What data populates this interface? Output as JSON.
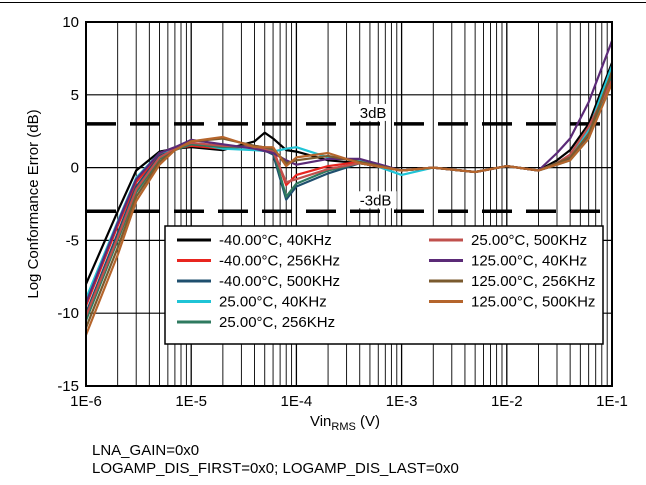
{
  "chart_data": {
    "type": "line",
    "ylabel": "Log Conformance Error (dB)",
    "xlabel_main": "Vin",
    "xlabel_sub": "RMS",
    "xlabel_unit": " (V)",
    "x_scale": "log",
    "xlim": [
      1e-06,
      0.1
    ],
    "ylim": [
      -15,
      10
    ],
    "x_ticks": [
      {
        "value": 1e-06,
        "label": "1E-6"
      },
      {
        "value": 1e-05,
        "label": "1E-5"
      },
      {
        "value": 0.0001,
        "label": "1E-4"
      },
      {
        "value": 0.001,
        "label": "1E-3"
      },
      {
        "value": 0.01,
        "label": "1E-2"
      },
      {
        "value": 0.1,
        "label": "1E-1"
      }
    ],
    "y_ticks": [
      {
        "value": 10,
        "label": "10"
      },
      {
        "value": 5,
        "label": "5"
      },
      {
        "value": 0,
        "label": "0"
      },
      {
        "value": -5,
        "label": "-5"
      },
      {
        "value": -10,
        "label": "-10"
      },
      {
        "value": -15,
        "label": "-15"
      }
    ],
    "grid": "minor-log-x, major-y",
    "legend_position": "lower-middle",
    "reference_lines": [
      {
        "y": 3,
        "label": "3dB",
        "label_x": 0.0004
      },
      {
        "y": -3,
        "label": "-3dB",
        "label_x": 0.0004
      }
    ],
    "series": [
      {
        "name": "-40.00°C, 40KHz",
        "color": "#000000",
        "x_points": [
          1e-06,
          2e-06,
          3e-06,
          5e-06,
          7e-06,
          1e-05,
          2e-05,
          4e-05,
          5e-05,
          6e-05,
          8e-05,
          0.0001,
          0.0002,
          0.0004,
          0.001,
          0.002,
          0.005,
          0.01,
          0.02,
          0.03,
          0.04,
          0.06,
          0.1
        ],
        "y": [
          -8,
          -3,
          -0.2,
          1.1,
          1.3,
          1.4,
          1.2,
          1.8,
          2.4,
          2.0,
          1.2,
          1.1,
          0.5,
          0.3,
          -0.2,
          0,
          -0.3,
          0.1,
          -0.2,
          0.5,
          1.2,
          3.0,
          7.2
        ]
      },
      {
        "name": "-40.00°C, 256KHz",
        "color": "#e8251f",
        "x_points": [
          1e-06,
          2e-06,
          3e-06,
          5e-06,
          7e-06,
          1e-05,
          2e-05,
          4e-05,
          6e-05,
          8e-05,
          0.0001,
          0.0002,
          0.0004,
          0.001,
          0.002,
          0.005,
          0.01,
          0.02,
          0.03,
          0.04,
          0.06,
          0.1
        ],
        "y": [
          -9.5,
          -4,
          -1,
          0.9,
          1.3,
          1.5,
          1.3,
          1.5,
          1.3,
          -1.2,
          -0.5,
          0.1,
          0.4,
          -0.2,
          0,
          -0.3,
          0.1,
          -0.2,
          0.3,
          0.8,
          2.5,
          6.8
        ]
      },
      {
        "name": "-40.00°C, 500KHz",
        "color": "#1f4f6e",
        "x_points": [
          1e-06,
          2e-06,
          3e-06,
          5e-06,
          7e-06,
          1e-05,
          2e-05,
          4e-05,
          6e-05,
          8e-05,
          0.0001,
          0.0002,
          0.0004,
          0.001,
          0.002,
          0.005,
          0.01,
          0.02,
          0.03,
          0.04,
          0.06,
          0.1
        ],
        "y": [
          -10,
          -4.5,
          -1.3,
          0.8,
          1.3,
          1.6,
          1.4,
          1.5,
          0.9,
          -2.2,
          -1.3,
          -0.4,
          0.3,
          -0.2,
          0,
          -0.3,
          0.1,
          -0.2,
          0.2,
          0.6,
          2.2,
          6.5
        ]
      },
      {
        "name": "25.00°C, 40KHz",
        "color": "#1fc4d6",
        "x_points": [
          1e-06,
          2e-06,
          3e-06,
          5e-06,
          7e-06,
          1e-05,
          2e-05,
          4e-05,
          6e-05,
          8e-05,
          0.0001,
          0.0002,
          0.0004,
          0.001,
          0.002,
          0.005,
          0.01,
          0.02,
          0.03,
          0.04,
          0.06,
          0.1
        ],
        "y": [
          -9,
          -3.7,
          -0.7,
          1.0,
          1.3,
          1.7,
          1.3,
          1.2,
          1.1,
          1.3,
          1.4,
          0.7,
          0.5,
          -0.5,
          0,
          -0.3,
          0.1,
          -0.2,
          0.3,
          0.8,
          2.6,
          7.0
        ]
      },
      {
        "name": "25.00°C, 256KHz",
        "color": "#2f7a5f",
        "x_points": [
          1e-06,
          2e-06,
          3e-06,
          5e-06,
          7e-06,
          1e-05,
          2e-05,
          4e-05,
          6e-05,
          8e-05,
          0.0001,
          0.0002,
          0.0004,
          0.001,
          0.002,
          0.005,
          0.01,
          0.02,
          0.03,
          0.04,
          0.06,
          0.1
        ],
        "y": [
          -10.5,
          -5,
          -1.7,
          0.6,
          1.2,
          1.6,
          1.4,
          1.4,
          1.2,
          -2.0,
          -1.1,
          -0.2,
          0.3,
          -0.2,
          0,
          -0.3,
          0.1,
          -0.2,
          0.2,
          0.5,
          2.0,
          6.2
        ]
      },
      {
        "name": "25.00°C, 500KHz",
        "color": "#c0504d",
        "x_points": [
          1e-06,
          2e-06,
          3e-06,
          5e-06,
          7e-06,
          1e-05,
          2e-05,
          4e-05,
          6e-05,
          8e-05,
          0.0001,
          0.0002,
          0.0004,
          0.001,
          0.002,
          0.005,
          0.01,
          0.02,
          0.03,
          0.04,
          0.06,
          0.1
        ],
        "y": [
          -10.2,
          -4.8,
          -1.5,
          0.7,
          1.3,
          1.7,
          1.5,
          1.4,
          1.1,
          -1.0,
          -0.8,
          -0.1,
          0.3,
          -0.2,
          0,
          -0.3,
          0.1,
          -0.2,
          0.3,
          0.9,
          2.8,
          6.0
        ]
      },
      {
        "name": "125.00°C, 40KHz",
        "color": "#5b2a77",
        "x_points": [
          1e-06,
          2e-06,
          3e-06,
          5e-06,
          7e-06,
          1e-05,
          2e-05,
          4e-05,
          6e-05,
          8e-05,
          0.0001,
          0.0002,
          0.0004,
          0.001,
          0.002,
          0.005,
          0.01,
          0.02,
          0.03,
          0.04,
          0.06,
          0.1
        ],
        "y": [
          -9.3,
          -3.8,
          -0.8,
          1.0,
          1.4,
          1.9,
          1.6,
          1.3,
          1.0,
          0.5,
          0.2,
          0.6,
          0.6,
          -0.2,
          0,
          -0.3,
          0.1,
          -0.2,
          1.0,
          2.0,
          4.5,
          8.7
        ]
      },
      {
        "name": "125.00°C, 256KHz",
        "color": "#7a5a2e",
        "x_points": [
          1e-06,
          2e-06,
          3e-06,
          5e-06,
          7e-06,
          1e-05,
          2e-05,
          4e-05,
          6e-05,
          8e-05,
          0.0001,
          0.0002,
          0.0004,
          0.001,
          0.002,
          0.005,
          0.01,
          0.02,
          0.03,
          0.04,
          0.06,
          0.1
        ],
        "y": [
          -11,
          -5.5,
          -2.0,
          0.4,
          1.2,
          1.8,
          2.0,
          1.5,
          1.3,
          0.3,
          0.5,
          0.8,
          0.4,
          -0.2,
          0,
          -0.3,
          0.1,
          -0.2,
          0.3,
          0.7,
          2.3,
          6.6
        ]
      },
      {
        "name": "125.00°C, 500KHz",
        "color": "#b5652c",
        "x_points": [
          1e-06,
          2e-06,
          3e-06,
          5e-06,
          7e-06,
          1e-05,
          2e-05,
          4e-05,
          6e-05,
          8e-05,
          0.0001,
          0.0002,
          0.0004,
          0.001,
          0.002,
          0.005,
          0.01,
          0.02,
          0.03,
          0.04,
          0.06,
          0.1
        ],
        "y": [
          -11.5,
          -6,
          -2.3,
          0.2,
          1.2,
          1.8,
          2.1,
          1.4,
          1.4,
          0.1,
          0.7,
          1.0,
          0.3,
          -0.2,
          0,
          -0.3,
          0.1,
          -0.2,
          0.2,
          0.5,
          2.0,
          5.8
        ]
      }
    ]
  },
  "footnotes": {
    "line1": "LNA_GAIN=0x0",
    "line2": "LOGAMP_DIS_FIRST=0x0; LOGAMP_DIS_LAST=0x0"
  }
}
